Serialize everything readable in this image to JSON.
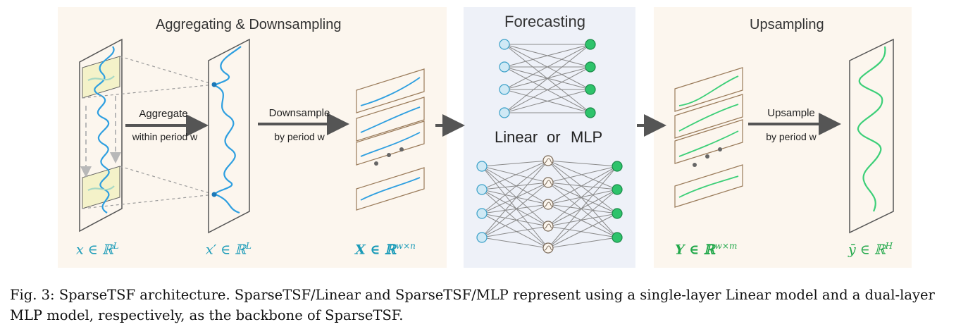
{
  "panels": {
    "left_title": "Aggregating & Downsampling",
    "middle_title": "Forecasting",
    "right_title": "Upsampling"
  },
  "arrows": {
    "aggregate_line1": "Aggregate",
    "aggregate_line2": "within period w",
    "downsample_line1": "Downsample",
    "downsample_line2": "by period w",
    "upsample_line1": "Upsample",
    "upsample_line2": "by period w"
  },
  "models": {
    "linear": "Linear",
    "or": "or",
    "mlp": "MLP"
  },
  "math_labels": {
    "x": "x ∈ ℝ",
    "x_sup": "L",
    "x_prime": "x′ ∈ ℝ",
    "x_prime_sup": "L",
    "X": "X ∈ ℝ",
    "X_sup": "w×n",
    "Y": "Y ∈ ℝ",
    "Y_sup": "w×m",
    "y_bar": "ȳ ∈ ℝ",
    "y_bar_sup": "H"
  },
  "caption": "Fig. 3: SparseTSF architecture. SparseTSF/Linear and SparseTSF/MLP represent using a single-layer Linear model and a dual-layer MLP model, respectively, as the backbone of SparseTSF.",
  "colors": {
    "teal": "#1a9bb8",
    "green": "#21a84a",
    "input_node": "#cfe9f5",
    "output_node": "#2ec36b",
    "panel_warm": "#fcf6ee",
    "panel_cool": "#eef1f8"
  }
}
